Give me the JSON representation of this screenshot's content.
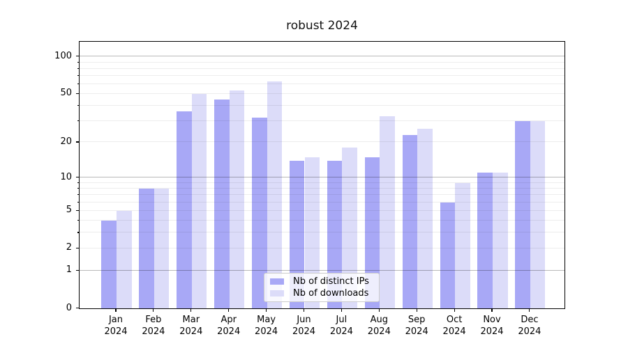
{
  "chart_data": {
    "type": "bar",
    "title": "robust 2024",
    "x_year": "2024",
    "categories": [
      "Jan",
      "Feb",
      "Mar",
      "Apr",
      "May",
      "Jun",
      "Jul",
      "Aug",
      "Sep",
      "Oct",
      "Nov",
      "Dec"
    ],
    "series": [
      {
        "name": "Nb of distinct IPs",
        "color": "#a8a8f6",
        "values": [
          4,
          8,
          36,
          45,
          32,
          14,
          14,
          15,
          23,
          6,
          11,
          30
        ]
      },
      {
        "name": "Nb of downloads",
        "color": "#dcdcf9",
        "values": [
          5,
          8,
          50,
          53,
          63,
          15,
          18,
          33,
          26,
          9,
          11,
          30
        ]
      }
    ],
    "yscale": "log1p",
    "ylim": [
      0,
      129
    ],
    "yticks": [
      0,
      1,
      2,
      5,
      10,
      20,
      50,
      100
    ],
    "major_gridlines": [
      1,
      10,
      100
    ],
    "minor_gridlines": [
      2,
      3,
      4,
      5,
      6,
      7,
      8,
      9,
      20,
      30,
      40,
      50,
      60,
      70,
      80,
      90
    ],
    "grid": "horizontal, minor and major, drawn above bars",
    "legend_position": "lower center"
  }
}
